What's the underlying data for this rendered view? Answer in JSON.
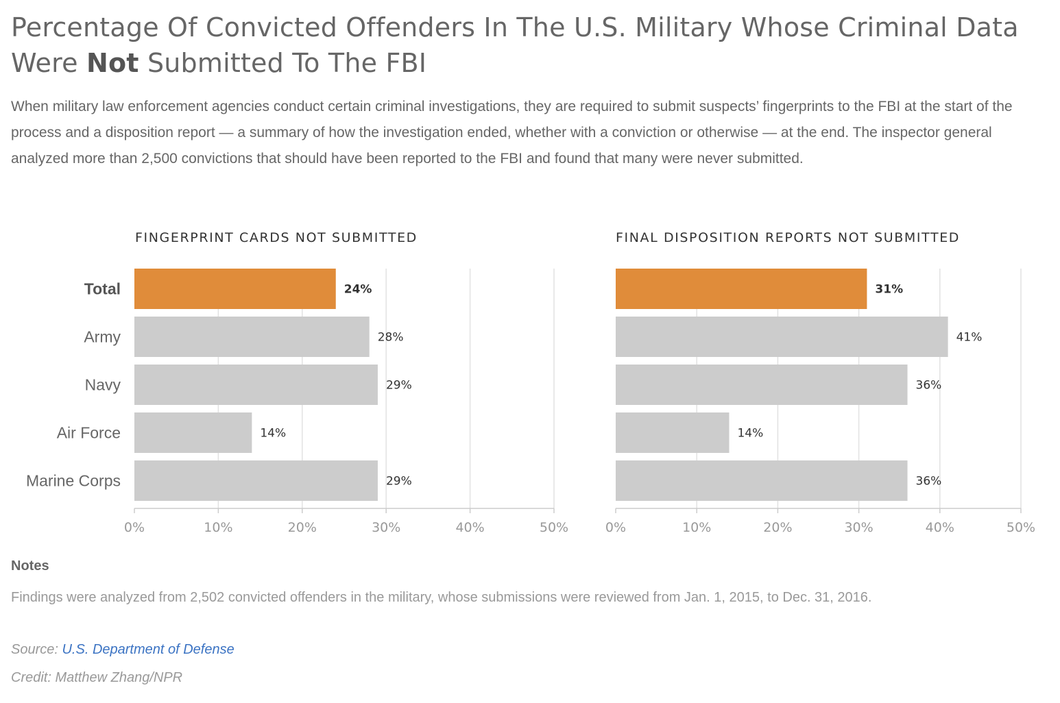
{
  "header": {
    "title_part1": "Percentage Of Convicted Offenders In The U.S. Military Whose Criminal Data Were ",
    "title_bold": "Not",
    "title_part2": " Submitted To The FBI",
    "intro": "When military law enforcement agencies conduct certain criminal investigations, they are required to submit suspects’ fingerprints to the FBI at the start of the process and a disposition report — a summary of how the investigation ended, whether with a conviction or otherwise — at the end. The inspector general analyzed more than 2,500 convictions that should have been reported to the FBI and found that many were never submitted."
  },
  "chart_data": [
    {
      "type": "bar",
      "orientation": "horizontal",
      "title": "FINGERPRINT CARDS NOT SUBMITTED",
      "categories": [
        "Total",
        "Army",
        "Navy",
        "Air Force",
        "Marine Corps"
      ],
      "values": [
        24,
        28,
        29,
        14,
        29
      ],
      "value_labels": [
        "24%",
        "28%",
        "29%",
        "14%",
        "29%"
      ],
      "highlight": "Total",
      "xlim": [
        0,
        50
      ],
      "ticks": [
        0,
        10,
        20,
        30,
        40,
        50
      ],
      "tick_labels": [
        "0%",
        "10%",
        "20%",
        "30%",
        "40%",
        "50%"
      ],
      "grid": true
    },
    {
      "type": "bar",
      "orientation": "horizontal",
      "title": "FINAL DISPOSITION REPORTS NOT SUBMITTED",
      "categories": [
        "Total",
        "Army",
        "Navy",
        "Air Force",
        "Marine Corps"
      ],
      "values": [
        31,
        41,
        36,
        14,
        36
      ],
      "value_labels": [
        "31%",
        "41%",
        "36%",
        "14%",
        "36%"
      ],
      "highlight": "Total",
      "xlim": [
        0,
        50
      ],
      "ticks": [
        0,
        10,
        20,
        30,
        40,
        50
      ],
      "tick_labels": [
        "0%",
        "10%",
        "20%",
        "30%",
        "40%",
        "50%"
      ],
      "grid": true
    }
  ],
  "colors": {
    "highlight_bar": "#e08c3a",
    "bar": "#cccccc",
    "grid": "#e2e2e2",
    "axis": "#cccccc",
    "link": "#3b73c3"
  },
  "notes": {
    "heading": "Notes",
    "text": "Findings were analyzed from 2,502 convicted offenders in the military, whose submissions were reviewed from Jan. 1, 2015, to Dec. 31, 2016."
  },
  "source": {
    "label": "Source: ",
    "link_text": "U.S. Department of Defense"
  },
  "credit": "Credit: Matthew Zhang/NPR"
}
